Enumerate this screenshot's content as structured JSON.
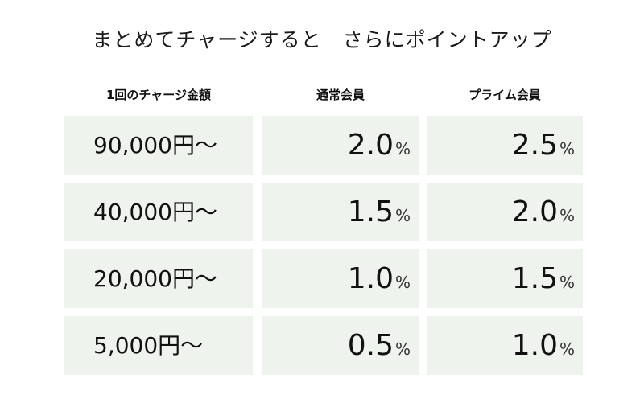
{
  "title": "まとめてチャージすると　さらにポイントアップ",
  "headers": {
    "amount": "1回のチャージ金額",
    "regular": "通常会員",
    "prime": "プライム会員"
  },
  "percent_symbol": "%",
  "rows": [
    {
      "amount": "90,000円〜",
      "regular": "2.0",
      "prime": "2.5"
    },
    {
      "amount": "40,000円〜",
      "regular": "1.5",
      "prime": "2.0"
    },
    {
      "amount": "20,000円〜",
      "regular": "1.0",
      "prime": "1.5"
    },
    {
      "amount": "5,000円〜",
      "regular": "0.5",
      "prime": "1.0"
    }
  ],
  "colors": {
    "cell_background": "#eff3ed",
    "text": "#111111"
  }
}
